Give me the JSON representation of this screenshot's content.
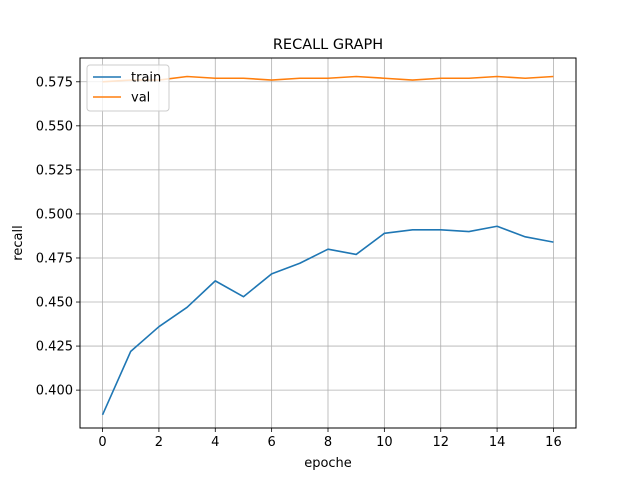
{
  "chart_data": {
    "type": "line",
    "title": "RECALL GRAPH",
    "xlabel": "epoche",
    "ylabel": "recall",
    "xlim": [
      -0.8,
      16.8
    ],
    "ylim": [
      0.3785,
      0.5885
    ],
    "xticks": [
      0,
      2,
      4,
      6,
      8,
      10,
      12,
      14,
      16
    ],
    "yticks": [
      0.4,
      0.425,
      0.45,
      0.475,
      0.5,
      0.525,
      0.55,
      0.575
    ],
    "grid": true,
    "legend_position": "top-left",
    "x": [
      0,
      1,
      2,
      3,
      4,
      5,
      6,
      7,
      8,
      9,
      10,
      11,
      12,
      13,
      14,
      15,
      16
    ],
    "series": [
      {
        "name": "train",
        "color": "#1f77b4",
        "values": [
          0.386,
          0.422,
          0.436,
          0.447,
          0.462,
          0.453,
          0.466,
          0.472,
          0.48,
          0.477,
          0.489,
          0.491,
          0.491,
          0.49,
          0.493,
          0.487,
          0.484
        ]
      },
      {
        "name": "val",
        "color": "#ff7f0e",
        "values": [
          0.575,
          0.576,
          0.576,
          0.578,
          0.577,
          0.577,
          0.576,
          0.577,
          0.577,
          0.578,
          0.577,
          0.576,
          0.577,
          0.577,
          0.578,
          0.577,
          0.578
        ]
      }
    ]
  }
}
